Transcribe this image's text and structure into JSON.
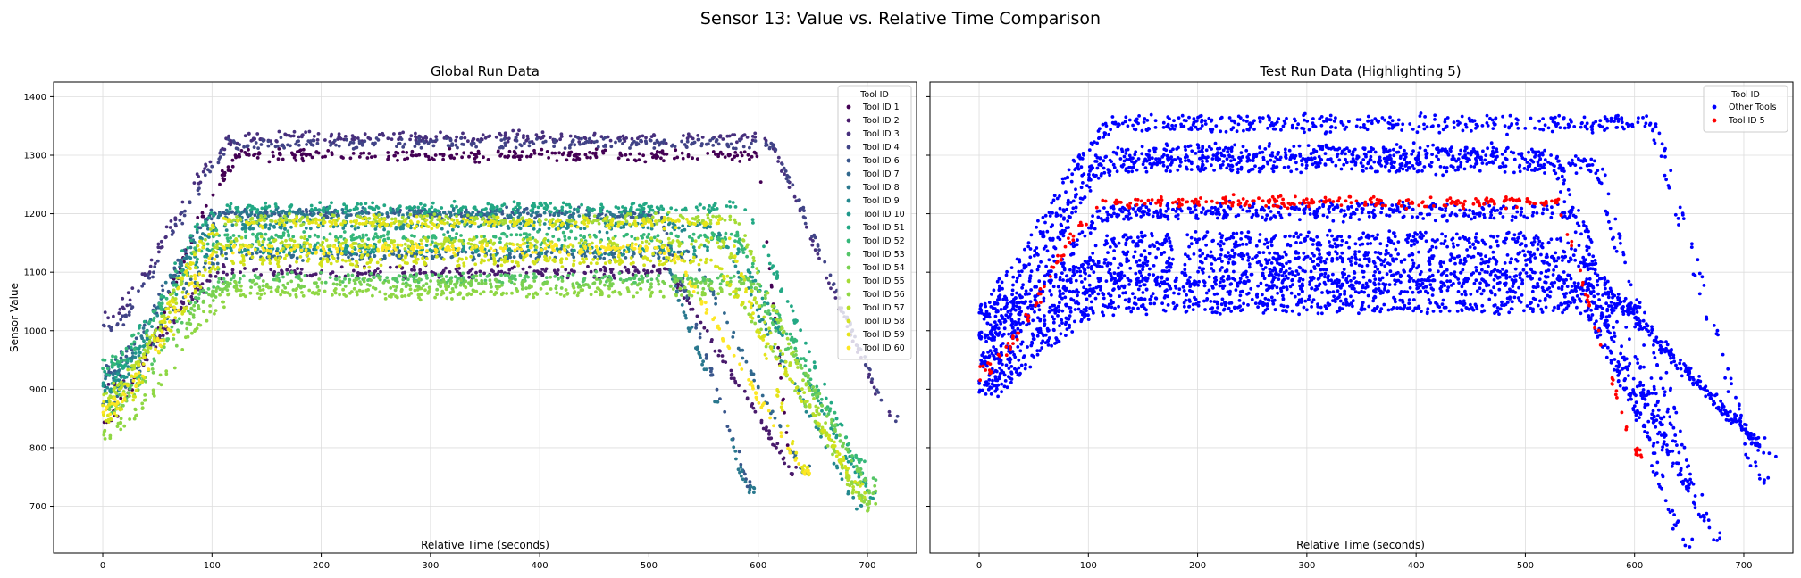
{
  "figure": {
    "suptitle": "Sensor 13: Value vs. Relative Time Comparison"
  },
  "chart_data": [
    {
      "type": "scatter",
      "title": "Global Run Data",
      "xlabel": "Relative Time (seconds)",
      "ylabel": "Sensor Value",
      "xlim": [
        -45,
        745
      ],
      "ylim": [
        620,
        1425
      ],
      "xticks": [
        0,
        100,
        200,
        300,
        400,
        500,
        600,
        700
      ],
      "yticks": [
        700,
        800,
        900,
        1000,
        1100,
        1200,
        1300,
        1400
      ],
      "grid": true,
      "legend": {
        "title": "Tool ID",
        "placement": "upper right"
      },
      "series": [
        {
          "name": "Tool ID 1",
          "color": "#440154",
          "plateau": 1300,
          "start": 850,
          "ramp_end": 130,
          "drop_start": 600,
          "drop_end": 630,
          "end_value": 750
        },
        {
          "name": "Tool ID 2",
          "color": "#481a6c",
          "plateau": 1100,
          "start": 900,
          "ramp_end": 115,
          "drop_start": 520,
          "drop_end": 630,
          "end_value": 760
        },
        {
          "name": "Tool ID 3",
          "color": "#472f7d",
          "plateau": 1330,
          "start": 1020,
          "ramp_end": 125,
          "drop_start": 610,
          "drop_end": 715,
          "end_value": 860
        },
        {
          "name": "Tool ID 4",
          "color": "#414487",
          "plateau": 1320,
          "start": 1000,
          "ramp_end": 125,
          "drop_start": 615,
          "drop_end": 720,
          "end_value": 850
        },
        {
          "name": "Tool ID 6",
          "color": "#39568c",
          "plateau": 1200,
          "start": 930,
          "ramp_end": 110,
          "drop_start": 510,
          "drop_end": 590,
          "end_value": 740
        },
        {
          "name": "Tool ID 7",
          "color": "#31688e",
          "plateau": 1130,
          "start": 880,
          "ramp_end": 110,
          "drop_start": 540,
          "drop_end": 640,
          "end_value": 760
        },
        {
          "name": "Tool ID 8",
          "color": "#2a788e",
          "plateau": 1200,
          "start": 910,
          "ramp_end": 110,
          "drop_start": 500,
          "drop_end": 590,
          "end_value": 730
        },
        {
          "name": "Tool ID 9",
          "color": "#23888e",
          "plateau": 1180,
          "start": 890,
          "ramp_end": 110,
          "drop_start": 560,
          "drop_end": 690,
          "end_value": 700
        },
        {
          "name": "Tool ID 10",
          "color": "#1f988b",
          "plateau": 1140,
          "start": 900,
          "ramp_end": 105,
          "drop_start": 580,
          "drop_end": 700,
          "end_value": 720
        },
        {
          "name": "Tool ID 51",
          "color": "#22a884",
          "plateau": 1210,
          "start": 920,
          "ramp_end": 110,
          "drop_start": 590,
          "drop_end": 700,
          "end_value": 730
        },
        {
          "name": "Tool ID 52",
          "color": "#35b779",
          "plateau": 1160,
          "start": 940,
          "ramp_end": 110,
          "drop_start": 580,
          "drop_end": 690,
          "end_value": 780
        },
        {
          "name": "Tool ID 53",
          "color": "#54c568",
          "plateau": 1090,
          "start": 870,
          "ramp_end": 115,
          "drop_start": 590,
          "drop_end": 700,
          "end_value": 740
        },
        {
          "name": "Tool ID 54",
          "color": "#7ad151",
          "plateau": 1080,
          "start": 860,
          "ramp_end": 120,
          "drop_start": 600,
          "drop_end": 700,
          "end_value": 730
        },
        {
          "name": "Tool ID 55",
          "color": "#a5db36",
          "plateau": 1190,
          "start": 880,
          "ramp_end": 115,
          "drop_start": 580,
          "drop_end": 690,
          "end_value": 710
        },
        {
          "name": "Tool ID 56",
          "color": "#8fd744",
          "plateau": 1065,
          "start": 820,
          "ramp_end": 125,
          "drop_start": 580,
          "drop_end": 700,
          "end_value": 700
        },
        {
          "name": "Tool ID 57",
          "color": "#b8de29",
          "plateau": 1150,
          "start": 890,
          "ramp_end": 115,
          "drop_start": 570,
          "drop_end": 690,
          "end_value": 720
        },
        {
          "name": "Tool ID 58",
          "color": "#d2e21b",
          "plateau": 1120,
          "start": 850,
          "ramp_end": 115,
          "drop_start": 560,
          "drop_end": 690,
          "end_value": 740
        },
        {
          "name": "Tool ID 59",
          "color": "#e5e419",
          "plateau": 1185,
          "start": 870,
          "ramp_end": 115,
          "drop_start": 570,
          "drop_end": 640,
          "end_value": 760
        },
        {
          "name": "Tool ID 60",
          "color": "#fde725",
          "plateau": 1140,
          "start": 860,
          "ramp_end": 115,
          "drop_start": 520,
          "drop_end": 640,
          "end_value": 760
        }
      ]
    },
    {
      "type": "scatter",
      "title": "Test Run Data (Highlighting 5)",
      "xlabel": "Relative Time (seconds)",
      "ylabel": "",
      "xlim": [
        -45,
        745
      ],
      "ylim": [
        620,
        1425
      ],
      "xticks": [
        0,
        100,
        200,
        300,
        400,
        500,
        600,
        700
      ],
      "yticks": [
        700,
        800,
        900,
        1000,
        1100,
        1200,
        1300,
        1400
      ],
      "grid": true,
      "legend": {
        "title": "Tool ID",
        "placement": "upper right"
      },
      "series": [
        {
          "name": "Other Tools",
          "color": "#0000ff",
          "plateaus": [
            1360,
            1310,
            1290,
            1210,
            1160,
            1130,
            1100,
            1080,
            1050
          ],
          "start_range": [
            900,
            1060
          ],
          "ramp_end": 130,
          "drop_start_range": [
            510,
            620
          ],
          "drop_end_range": [
            590,
            725
          ],
          "end_range": [
            650,
            860
          ]
        },
        {
          "name": "Tool ID 5",
          "color": "#ff0000",
          "plateau": 1220,
          "start": 930,
          "ramp_end": 120,
          "drop_start": 530,
          "drop_end": 600,
          "end_value": 790
        }
      ]
    }
  ]
}
